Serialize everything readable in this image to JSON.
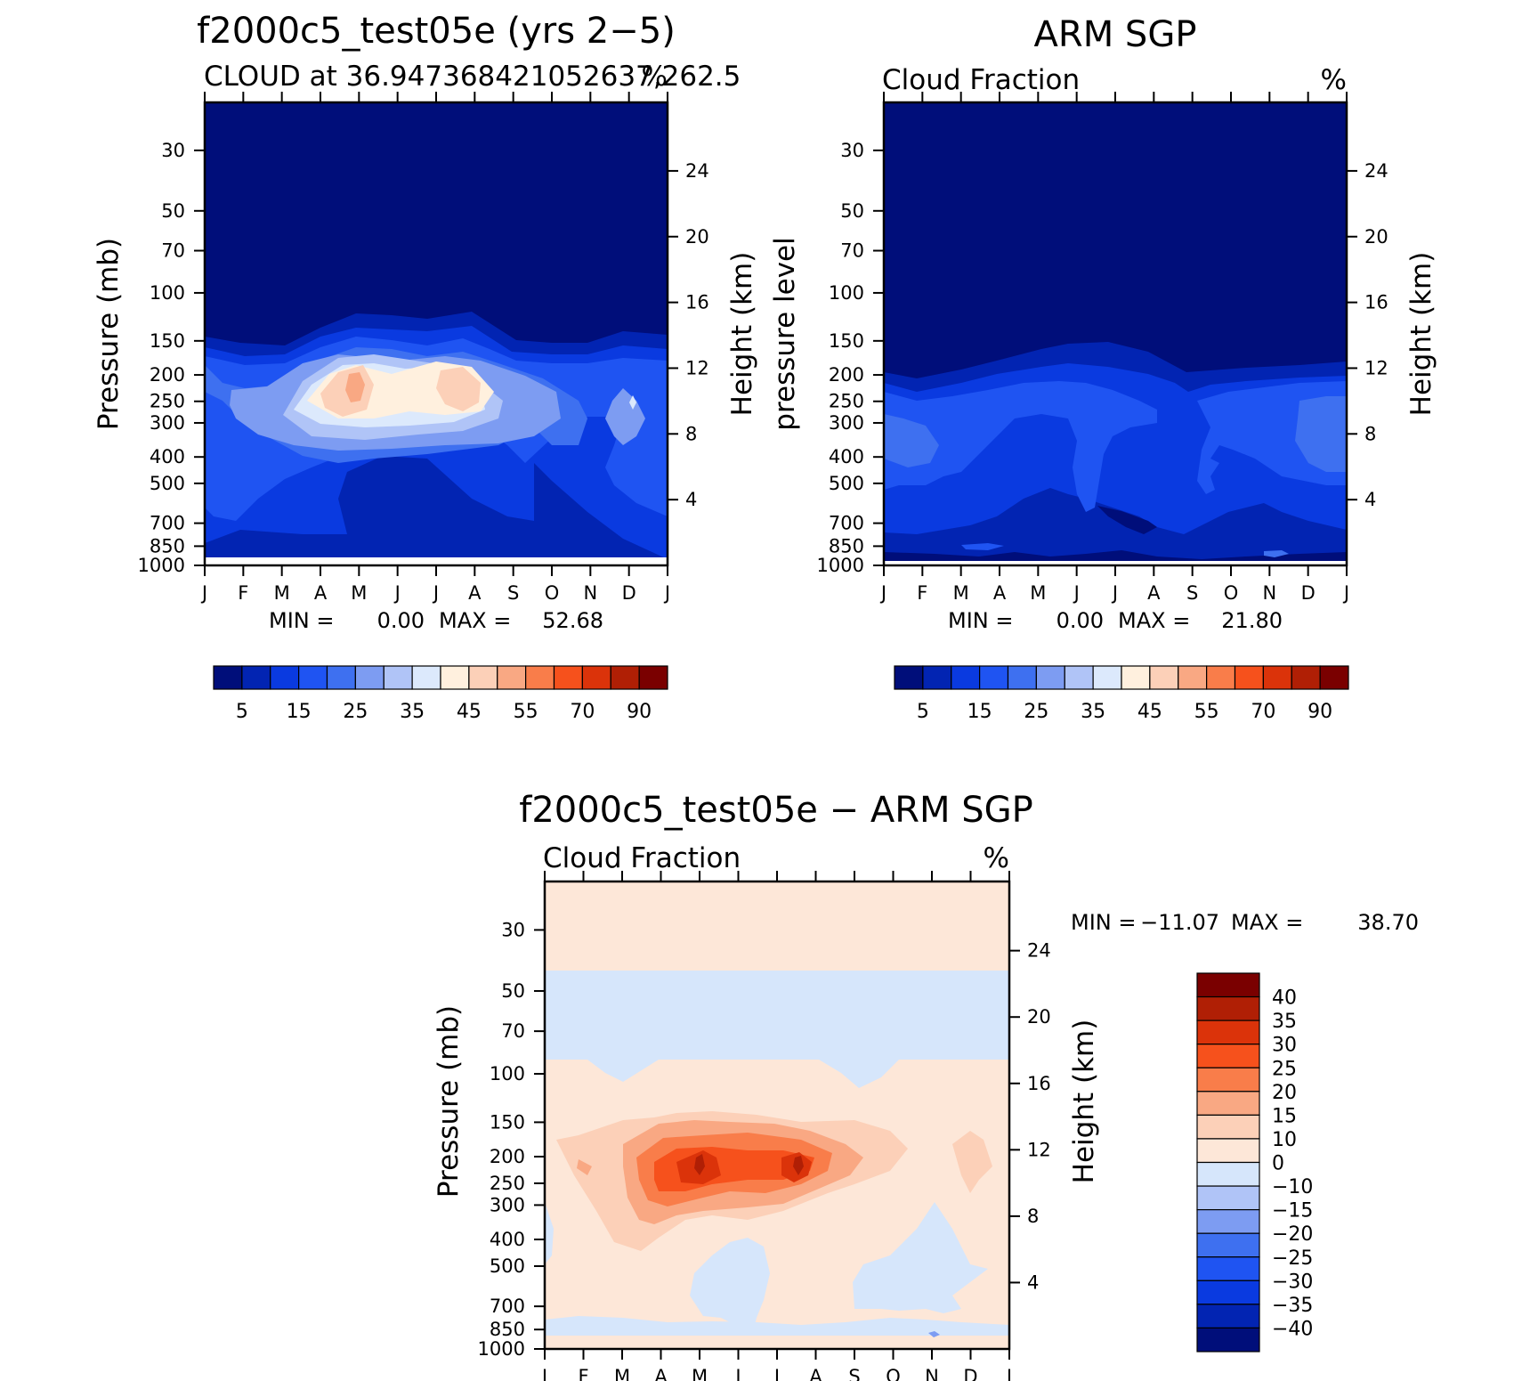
{
  "chart_data": [
    {
      "type": "heatmap",
      "title": "f2000c5_test05e (yrs 2−5)",
      "subtitle_left": "CLOUD at 36.947368421052637,262.5",
      "subtitle_right": "%",
      "ylabel": "Pressure (mb)",
      "ylabel_right": "Height (km)",
      "x_ticks": [
        "J",
        "F",
        "M",
        "A",
        "M",
        "J",
        "J",
        "A",
        "S",
        "O",
        "N",
        "D",
        "J"
      ],
      "y_ticks": [
        "30",
        "50",
        "70",
        "100",
        "150",
        "200",
        "250",
        "300",
        "400",
        "500",
        "700",
        "850",
        "1000"
      ],
      "y_right_ticks": [
        "24",
        "20",
        "16",
        "12",
        "8",
        "4"
      ],
      "stats": {
        "min_label": "MIN =",
        "min": "0.00",
        "max_label": "MAX =",
        "max": "52.68"
      },
      "colorbar": {
        "orientation": "horizontal",
        "colors": [
          "#000e7a",
          "#0224b2",
          "#0a3ae0",
          "#1f54f2",
          "#3e70f0",
          "#7d9cf2",
          "#b0c4f7",
          "#dce9fc",
          "#fff0de",
          "#fcd0b8",
          "#f9a883",
          "#f97d4a",
          "#f6511c",
          "#db330a",
          "#b01f05",
          "#7a0000"
        ],
        "labels": [
          "5",
          "15",
          "25",
          "35",
          "45",
          "55",
          "70",
          "90"
        ]
      },
      "peaks": [
        {
          "month": "May",
          "pressure_mb": 250,
          "value": 52.7
        },
        {
          "month": "Aug",
          "pressure_mb": 230,
          "value": 45
        }
      ]
    },
    {
      "type": "heatmap",
      "title": "ARM SGP",
      "subtitle_left": "Cloud Fraction",
      "subtitle_right": "%",
      "ylabel": "pressure level",
      "ylabel_right": "Height (km)",
      "x_ticks": [
        "J",
        "F",
        "M",
        "A",
        "M",
        "J",
        "J",
        "A",
        "S",
        "O",
        "N",
        "D",
        "J"
      ],
      "y_ticks": [
        "30",
        "50",
        "70",
        "100",
        "150",
        "200",
        "250",
        "300",
        "400",
        "500",
        "700",
        "850",
        "1000"
      ],
      "y_right_ticks": [
        "24",
        "20",
        "16",
        "12",
        "8",
        "4"
      ],
      "stats": {
        "min_label": "MIN =",
        "min": "0.00",
        "max_label": "MAX =",
        "max": "21.80"
      },
      "colorbar": {
        "orientation": "horizontal",
        "colors": [
          "#000e7a",
          "#0224b2",
          "#0a3ae0",
          "#1f54f2",
          "#3e70f0",
          "#7d9cf2",
          "#b0c4f7",
          "#dce9fc",
          "#fff0de",
          "#fcd0b8",
          "#f9a883",
          "#f97d4a",
          "#f6511c",
          "#db330a",
          "#b01f05",
          "#7a0000"
        ],
        "labels": [
          "5",
          "15",
          "25",
          "35",
          "45",
          "55",
          "70",
          "90"
        ]
      },
      "peaks": [
        {
          "month": "Jan",
          "pressure_mb": 330,
          "value": 21.8
        }
      ]
    },
    {
      "type": "heatmap",
      "title": "f2000c5_test05e − ARM SGP",
      "subtitle_left": "Cloud Fraction",
      "subtitle_right": "%",
      "ylabel": "Pressure (mb)",
      "ylabel_right": "Height (km)",
      "x_ticks": [
        "J",
        "F",
        "M",
        "A",
        "M",
        "J",
        "J",
        "A",
        "S",
        "O",
        "N",
        "D",
        "J"
      ],
      "y_ticks": [
        "30",
        "50",
        "70",
        "100",
        "150",
        "200",
        "250",
        "300",
        "400",
        "500",
        "700",
        "850",
        "1000"
      ],
      "y_right_ticks": [
        "24",
        "20",
        "16",
        "12",
        "8",
        "4"
      ],
      "stats": {
        "min_label": "MIN =",
        "min": "−11.07",
        "max_label": "MAX =",
        "max": "38.70"
      },
      "colorbar": {
        "orientation": "vertical",
        "colors_top_to_bottom": [
          "#7a0000",
          "#b01f05",
          "#db330a",
          "#f6511c",
          "#f97d4a",
          "#f9a883",
          "#fcd0b8",
          "#fde7d8",
          "#d6e6fb",
          "#b0c4f7",
          "#7d9cf2",
          "#3e70f0",
          "#1f54f2",
          "#0a3ae0",
          "#0224b2",
          "#000e7a"
        ],
        "labels_top_to_bottom": [
          "40",
          "35",
          "30",
          "25",
          "20",
          "15",
          "10",
          "0",
          "−10",
          "−15",
          "−20",
          "−25",
          "−30",
          "−35",
          "−40"
        ]
      },
      "peaks": [
        {
          "month": "May",
          "pressure_mb": 240,
          "value": 38.7
        },
        {
          "month": "Aug",
          "pressure_mb": 240,
          "value": 35
        }
      ]
    }
  ]
}
